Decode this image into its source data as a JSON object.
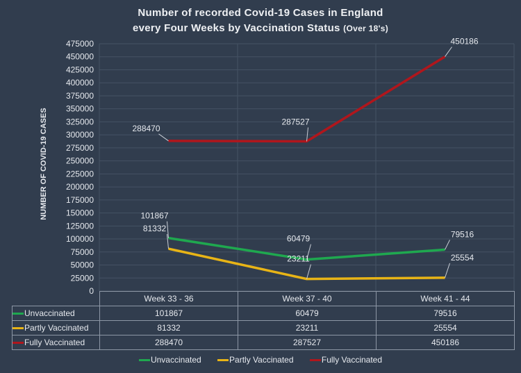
{
  "chart_data": {
    "type": "line",
    "title_line1": "Number of recorded Covid-19 Cases in England",
    "title_line2": "every Four Weeks by Vaccination Status",
    "title_suffix": "(Over 18's)",
    "ylabel": "NUMBER OF COVID-19 CASES",
    "xlabel": "",
    "categories": [
      "Week 33 - 36",
      "Week 37 - 40",
      "Week 41 - 44"
    ],
    "ylim": [
      0,
      475000
    ],
    "yticks": [
      "0",
      "25000",
      "50000",
      "75000",
      "100000",
      "125000",
      "150000",
      "175000",
      "200000",
      "225000",
      "250000",
      "275000",
      "300000",
      "325000",
      "350000",
      "375000",
      "400000",
      "425000",
      "450000",
      "475000"
    ],
    "grid": true,
    "legend": "bottom",
    "data_table": true,
    "series": [
      {
        "name": "Unvaccinated",
        "color": "#1fa84f",
        "values": [
          101867,
          60479,
          79516
        ],
        "labels": [
          "101867",
          "60479",
          "79516"
        ]
      },
      {
        "name": "Partly Vaccinated",
        "color": "#e8b416",
        "values": [
          81332,
          23211,
          25554
        ],
        "labels": [
          "81332",
          "23211",
          "25554"
        ]
      },
      {
        "name": "Fully Vaccinated",
        "color": "#b0161c",
        "values": [
          288470,
          287527,
          450186
        ],
        "labels": [
          "288470",
          "287527",
          "450186"
        ]
      }
    ]
  }
}
